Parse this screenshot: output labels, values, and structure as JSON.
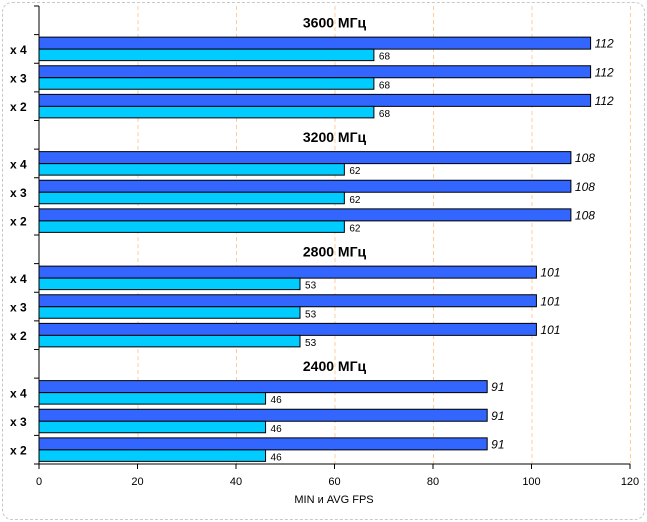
{
  "chart_data": {
    "type": "bar",
    "orientation": "horizontal",
    "xlabel": "MIN и AVG FPS",
    "xlim": [
      0,
      120
    ],
    "xticks": [
      0,
      20,
      40,
      60,
      80,
      100,
      120
    ],
    "grid": "vertical dashed",
    "colors": {
      "avg": "#3366ff",
      "min": "#00ccff",
      "grid": "#ffcc99"
    },
    "groups": [
      {
        "title": "3600 МГц",
        "categories": [
          "x 4",
          "x 3",
          "x 2"
        ],
        "avg": [
          112,
          112,
          112
        ],
        "min": [
          68,
          68,
          68
        ]
      },
      {
        "title": "3200 МГц",
        "categories": [
          "x 4",
          "x 3",
          "x 2"
        ],
        "avg": [
          108,
          108,
          108
        ],
        "min": [
          62,
          62,
          62
        ]
      },
      {
        "title": "2800 МГц",
        "categories": [
          "x 4",
          "x 3",
          "x 2"
        ],
        "avg": [
          101,
          101,
          101
        ],
        "min": [
          53,
          53,
          53
        ]
      },
      {
        "title": "2400 МГц",
        "categories": [
          "x 4",
          "x 3",
          "x 2"
        ],
        "avg": [
          91,
          91,
          91
        ],
        "min": [
          46,
          46,
          46
        ]
      }
    ]
  }
}
